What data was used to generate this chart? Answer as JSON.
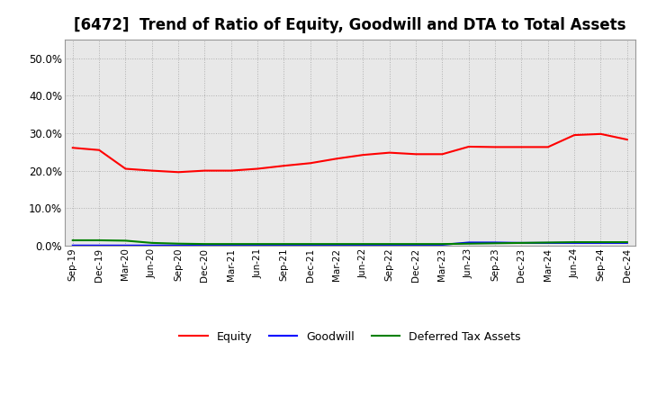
{
  "title": "[6472]  Trend of Ratio of Equity, Goodwill and DTA to Total Assets",
  "x_labels": [
    "Sep-19",
    "Dec-19",
    "Mar-20",
    "Jun-20",
    "Sep-20",
    "Dec-20",
    "Mar-21",
    "Jun-21",
    "Sep-21",
    "Dec-21",
    "Mar-22",
    "Jun-22",
    "Sep-22",
    "Dec-22",
    "Mar-23",
    "Jun-23",
    "Sep-23",
    "Dec-23",
    "Mar-24",
    "Jun-24",
    "Sep-24",
    "Dec-24"
  ],
  "equity": [
    0.261,
    0.255,
    0.205,
    0.2,
    0.196,
    0.2,
    0.2,
    0.205,
    0.213,
    0.22,
    0.232,
    0.242,
    0.248,
    0.244,
    0.244,
    0.264,
    0.263,
    0.263,
    0.263,
    0.295,
    0.298,
    0.283
  ],
  "goodwill": [
    0.0,
    0.0,
    0.0,
    0.0,
    0.0,
    0.0,
    0.0,
    0.0,
    0.0,
    0.0,
    0.001,
    0.001,
    0.001,
    0.001,
    0.002,
    0.008,
    0.008,
    0.007,
    0.007,
    0.007,
    0.007,
    0.007
  ],
  "dta": [
    0.014,
    0.014,
    0.013,
    0.007,
    0.005,
    0.004,
    0.004,
    0.004,
    0.004,
    0.004,
    0.004,
    0.004,
    0.004,
    0.004,
    0.004,
    0.005,
    0.006,
    0.007,
    0.008,
    0.009,
    0.009,
    0.009
  ],
  "equity_color": "#ff0000",
  "goodwill_color": "#0000ff",
  "dta_color": "#008000",
  "ylim": [
    0.0,
    0.55
  ],
  "yticks": [
    0.0,
    0.1,
    0.2,
    0.3,
    0.4,
    0.5
  ],
  "background_color": "#ffffff",
  "plot_bg_color": "#e8e8e8",
  "grid_color": "#b0b0b0",
  "title_fontsize": 12,
  "legend_labels": [
    "Equity",
    "Goodwill",
    "Deferred Tax Assets"
  ]
}
